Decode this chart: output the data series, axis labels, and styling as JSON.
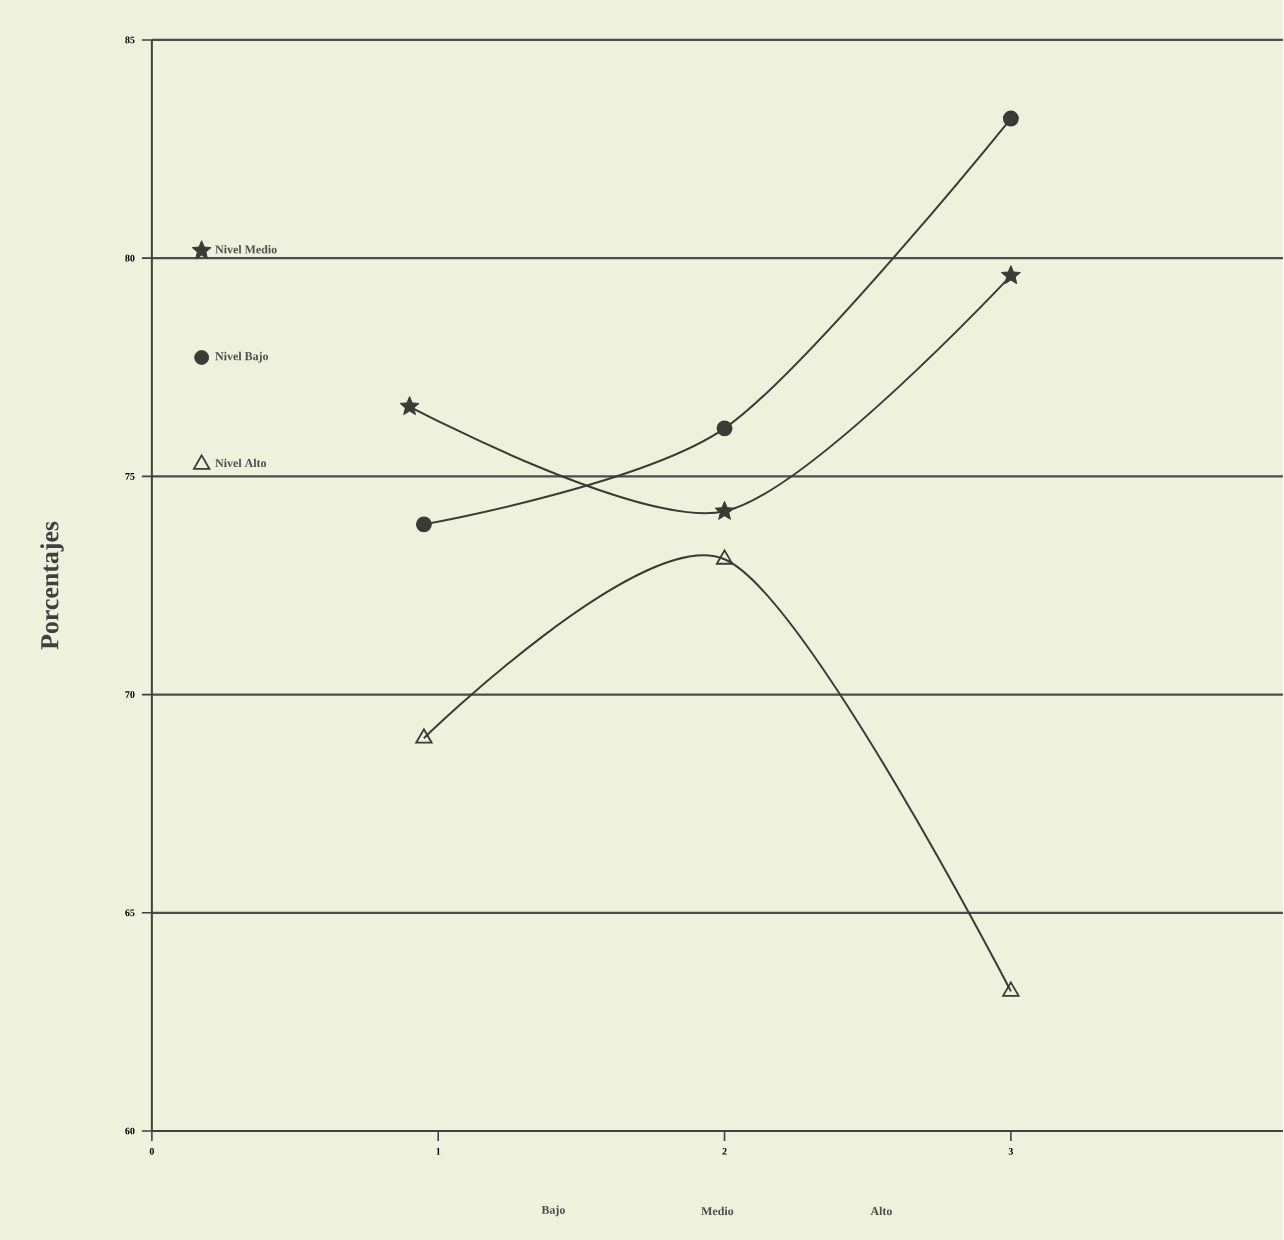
{
  "chart_data": {
    "type": "line",
    "ylabel": "Porcentajes",
    "series": [
      {
        "name": "Nivel Medio",
        "color": "#3a3a36",
        "marker": "star",
        "x": [
          0.9,
          2,
          3
        ],
        "values": [
          76.6,
          74.2,
          79.6
        ]
      },
      {
        "name": "Nivel Bajo",
        "color": "#3a3a36",
        "marker": "circle",
        "x": [
          0.95,
          2,
          3
        ],
        "values": [
          73.9,
          76.1,
          83.2
        ]
      },
      {
        "name": "Nivel Alto",
        "color": "#3a3a36",
        "marker": "triangle",
        "x": [
          0.95,
          2,
          3
        ],
        "values": [
          69.0,
          73.1,
          63.2
        ]
      }
    ],
    "xlim": [
      0,
      3.95
    ],
    "ylim": [
      60,
      85
    ],
    "xticks": [
      0,
      1,
      2,
      3
    ],
    "yticks": [
      60,
      65,
      70,
      75,
      80,
      85
    ],
    "grid": "y",
    "legend": "left",
    "line_style": "solid",
    "annotations": [
      "Bajo",
      "Medio",
      "Alto"
    ]
  }
}
